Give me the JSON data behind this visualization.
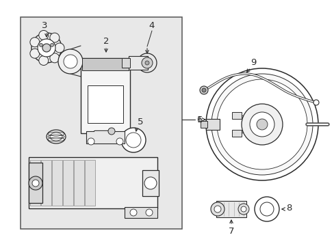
{
  "bg_color": "#ffffff",
  "box_fill": "#e8e8e8",
  "lc": "#2a2a2a",
  "figsize": [
    4.89,
    3.6
  ],
  "dpi": 100,
  "xlim": [
    0,
    489
  ],
  "ylim": [
    0,
    360
  ]
}
